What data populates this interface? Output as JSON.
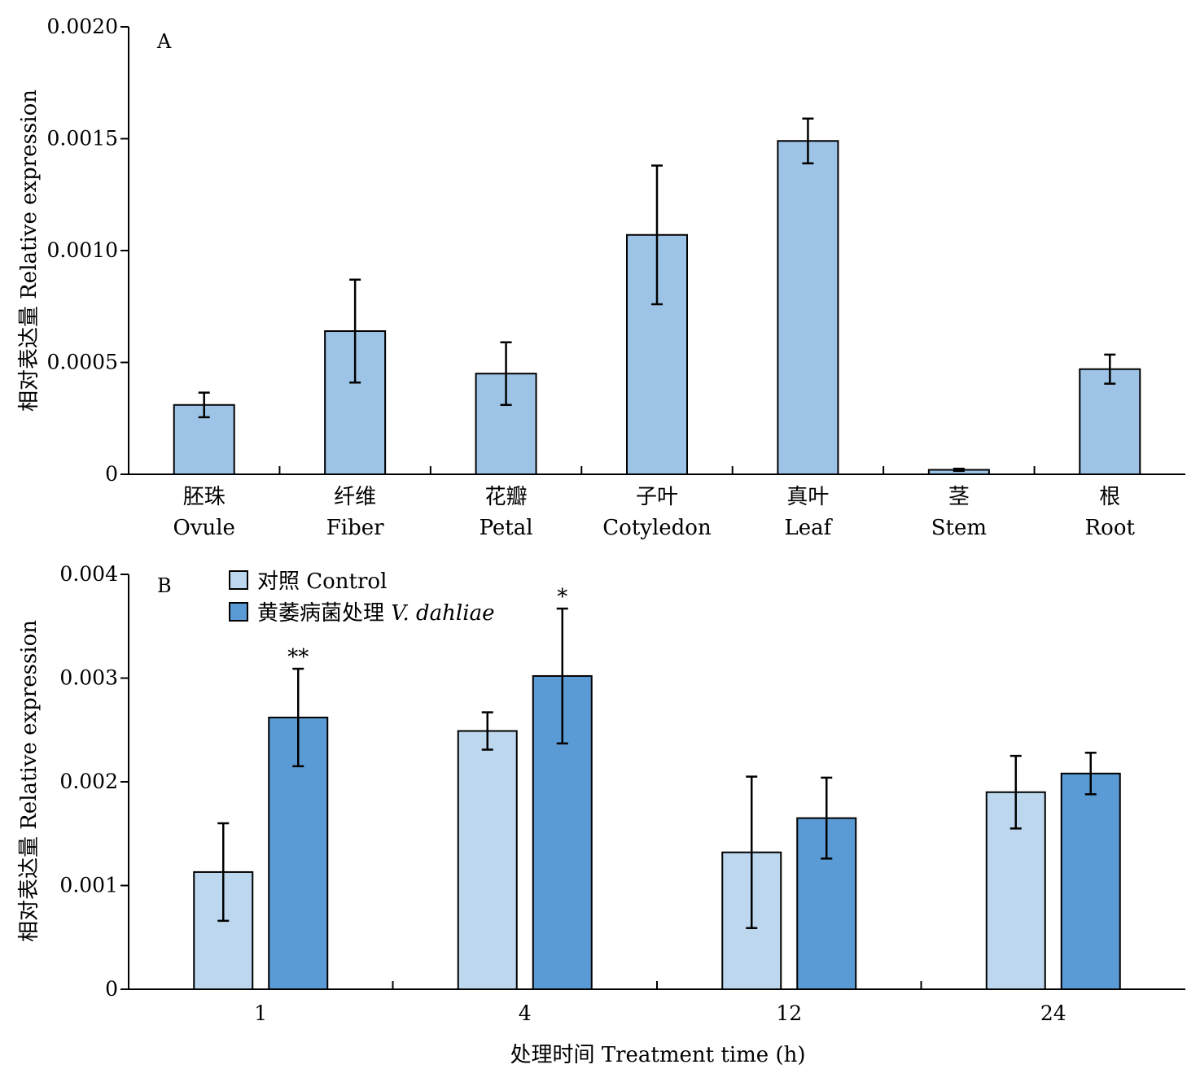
{
  "chart_data": [
    {
      "type": "bar",
      "panel_label": "A",
      "ylabel": "相对表达量 Relative expression",
      "ylim": [
        0,
        0.002
      ],
      "yticks": [
        "0",
        "0.0005",
        "0.0010",
        "0.0015",
        "0.0020"
      ],
      "categories": [
        {
          "zh": "胚珠",
          "en": "Ovule"
        },
        {
          "zh": "纤维",
          "en": "Fiber"
        },
        {
          "zh": "花瓣",
          "en": "Petal"
        },
        {
          "zh": "子叶",
          "en": "Cotyledon"
        },
        {
          "zh": "真叶",
          "en": "Leaf"
        },
        {
          "zh": "茎",
          "en": "Stem"
        },
        {
          "zh": "根",
          "en": "Root"
        }
      ],
      "series": [
        {
          "color": "#9dc3e6",
          "values": [
            0.00031,
            0.00064,
            0.00045,
            0.00107,
            0.00149,
            2e-05,
            0.00047
          ],
          "errors": [
            5.5e-05,
            0.00023,
            0.00014,
            0.00031,
            0.0001,
            5e-06,
            6.5e-05
          ]
        }
      ]
    },
    {
      "type": "bar",
      "panel_label": "B",
      "ylabel": "相对表达量 Relative expression",
      "xlabel": "处理时间 Treatment time (h)",
      "ylim": [
        0,
        0.004
      ],
      "yticks": [
        "0",
        "0.001",
        "0.002",
        "0.003",
        "0.004"
      ],
      "categories": [
        "1",
        "4",
        "12",
        "24"
      ],
      "legend_position": "top-left",
      "series": [
        {
          "name": "对照 Control",
          "color": "#bdd7ee",
          "values": [
            0.00113,
            0.00249,
            0.00132,
            0.0019
          ],
          "errors": [
            0.00047,
            0.00018,
            0.00073,
            0.00035
          ],
          "significance": [
            "",
            "",
            "",
            ""
          ]
        },
        {
          "name_prefix": "黄萎病菌处理",
          "name_species": "V. dahliae",
          "color": "#5b9bd5",
          "values": [
            0.00262,
            0.00302,
            0.00165,
            0.00208
          ],
          "errors": [
            0.00047,
            0.00065,
            0.00039,
            0.0002
          ],
          "significance": [
            "**",
            "*",
            "",
            ""
          ]
        }
      ]
    }
  ]
}
